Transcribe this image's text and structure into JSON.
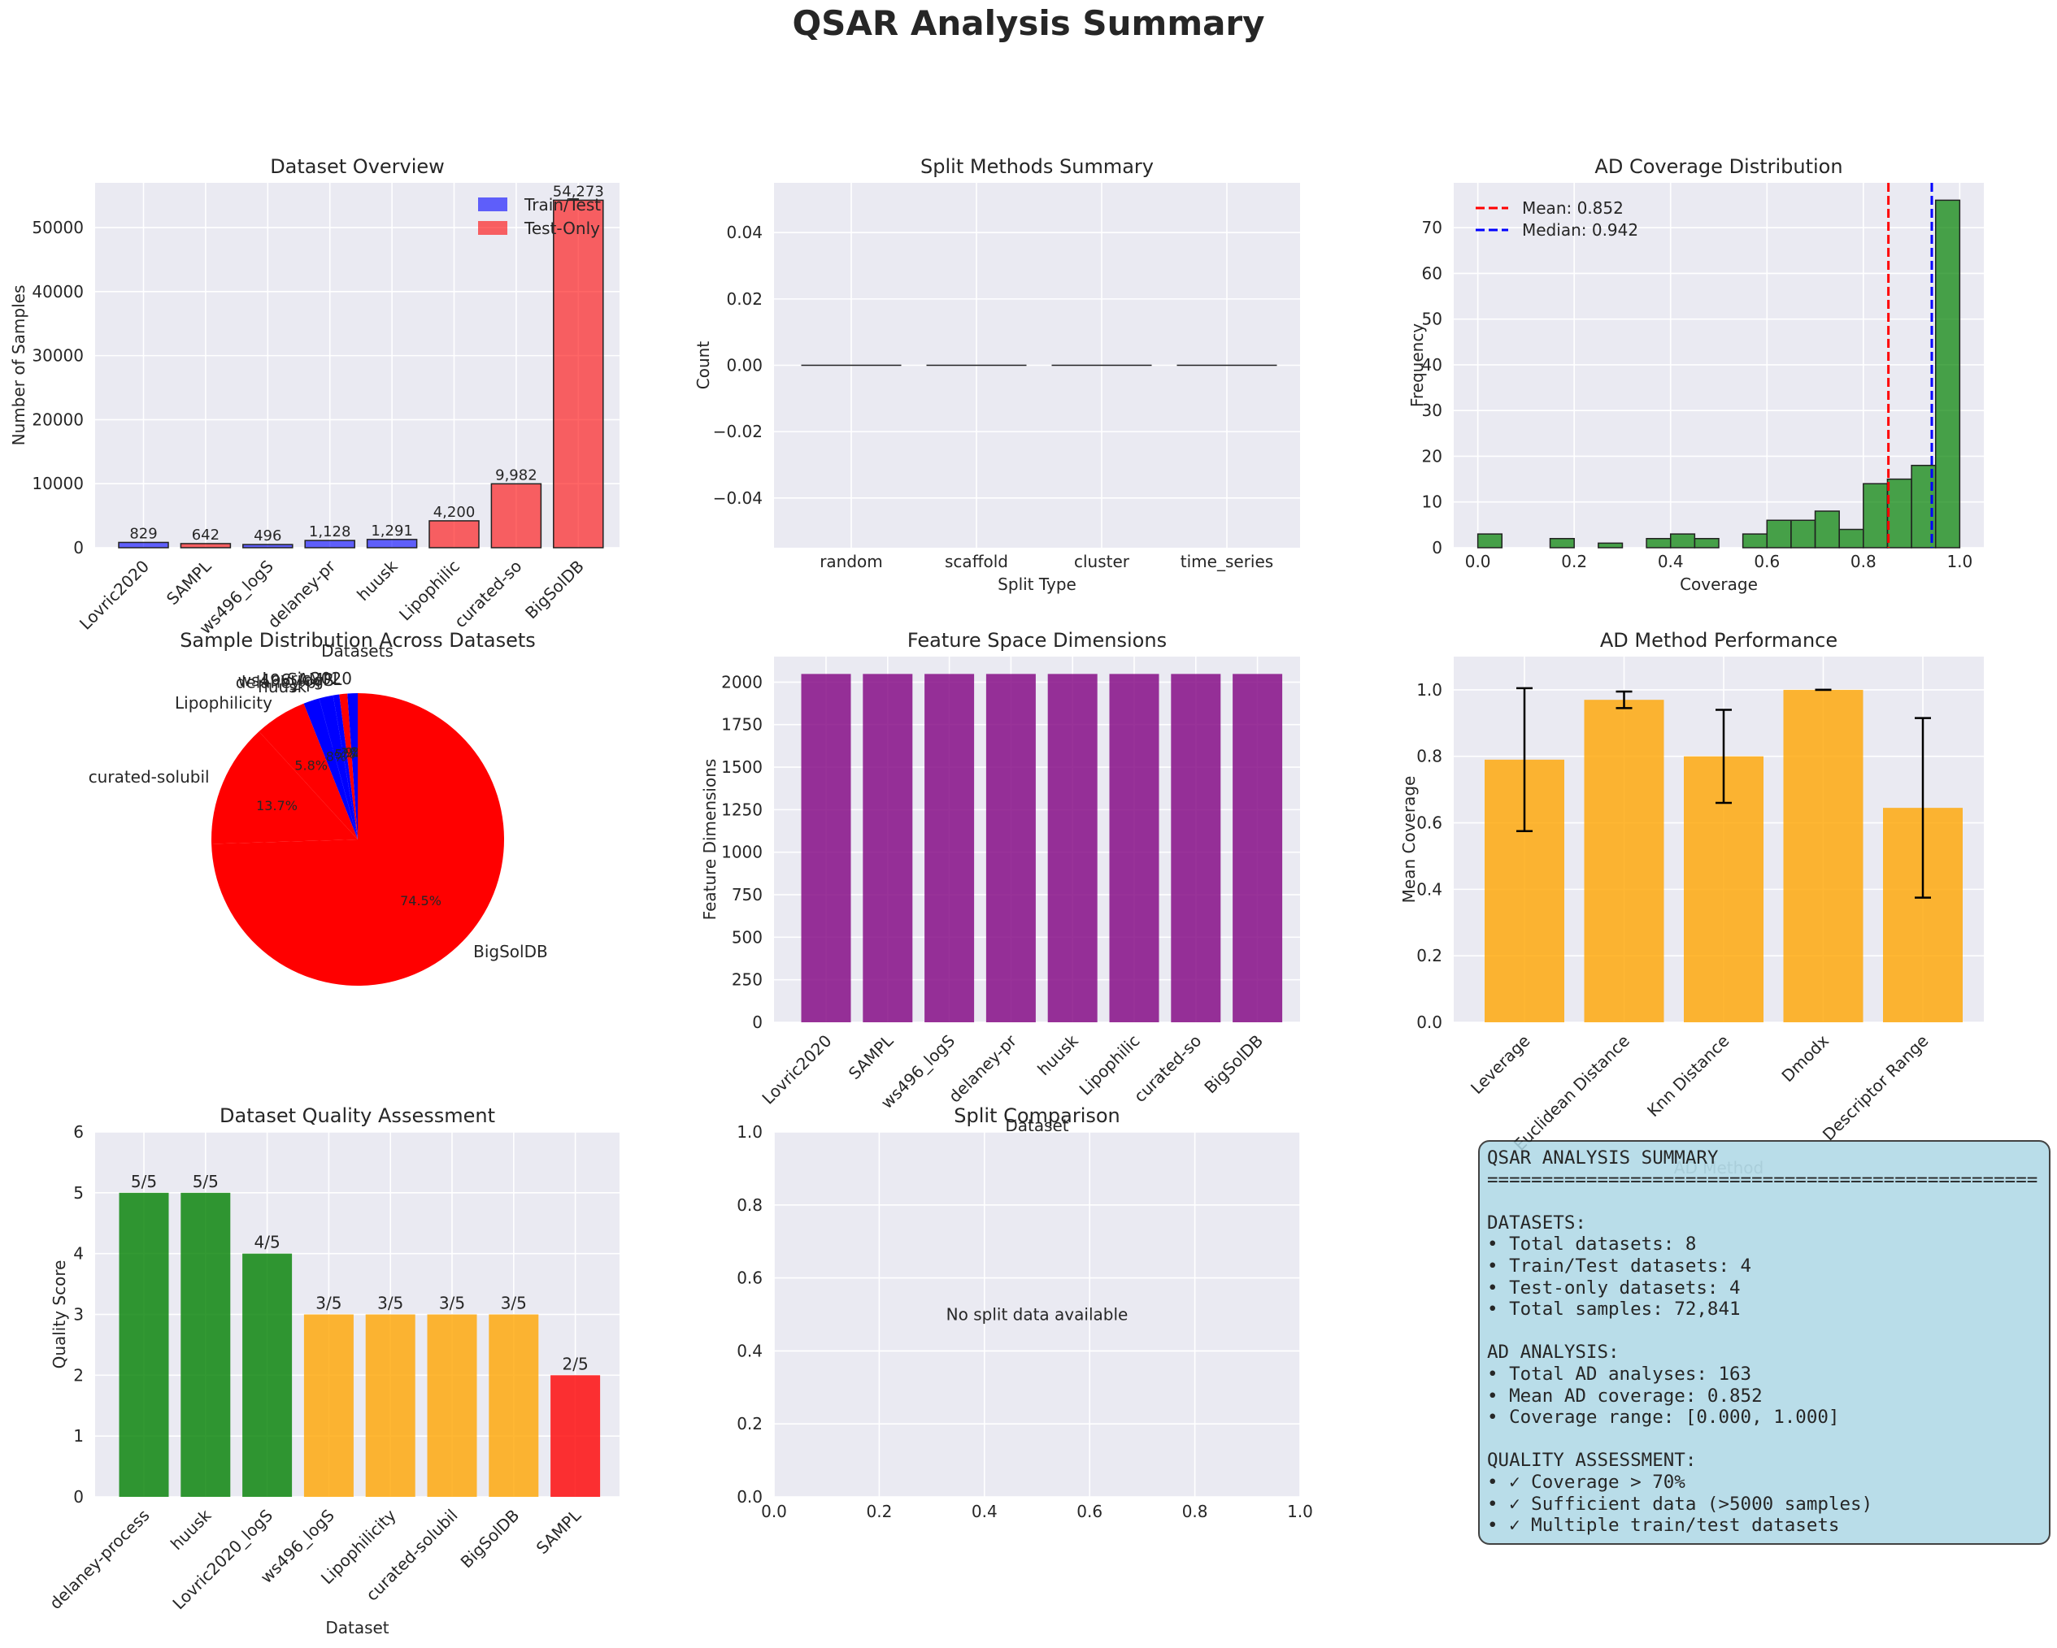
{
  "figure_title": "QSAR Analysis Summary",
  "colors": {
    "panel_bg": "#eaeaf2",
    "train_test": "#0000ff",
    "test_only": "#ff0000",
    "purple": "#800080",
    "green": "#008000",
    "orange": "#ffa500",
    "red": "#ff0000",
    "summary_bg": "#add8e6"
  },
  "chart_data": [
    {
      "id": "dataset_overview",
      "type": "bar",
      "title": "Dataset Overview",
      "xlabel": "Datasets",
      "ylabel": "Number of Samples",
      "categories": [
        "Lovric2020",
        "SAMPL",
        "ws496_logS",
        "delaney-pr",
        "huusk",
        "Lipophilic",
        "curated-so",
        "BigSolDB"
      ],
      "values": [
        829,
        642,
        496,
        1128,
        1291,
        4200,
        9982,
        54273
      ],
      "value_labels": [
        "829",
        "642",
        "496",
        "1,128",
        "1,291",
        "4,200",
        "9,982",
        "54,273"
      ],
      "bar_types": [
        "Train/Test",
        "Test-Only",
        "Train/Test",
        "Train/Test",
        "Train/Test",
        "Test-Only",
        "Test-Only",
        "Test-Only"
      ],
      "legend": [
        "Train/Test",
        "Test-Only"
      ],
      "legend_position": "top-right",
      "ylim": [
        0,
        56987
      ],
      "yticks": [
        0,
        10000,
        20000,
        30000,
        40000,
        50000
      ],
      "grid": true
    },
    {
      "id": "split_methods",
      "type": "bar",
      "title": "Split Methods Summary",
      "xlabel": "Split Type",
      "ylabel": "Count",
      "categories": [
        "random",
        "scaffold",
        "cluster",
        "time_series"
      ],
      "values": [
        0,
        0,
        0,
        0
      ],
      "ylim": [
        -0.055,
        0.055
      ],
      "yticks": [
        -0.04,
        -0.02,
        0.0,
        0.02,
        0.04
      ],
      "ytick_labels": [
        "−0.04",
        "−0.02",
        "0.00",
        "0.02",
        "0.04"
      ],
      "grid": true
    },
    {
      "id": "ad_coverage",
      "type": "bar",
      "title": "AD Coverage Distribution",
      "xlabel": "Coverage",
      "ylabel": "Frequency",
      "bin_width": 0.05,
      "bin_starts": [
        0.0,
        0.05,
        0.1,
        0.15,
        0.2,
        0.25,
        0.3,
        0.35,
        0.4,
        0.45,
        0.5,
        0.55,
        0.6,
        0.65,
        0.7,
        0.75,
        0.8,
        0.85,
        0.9,
        0.95
      ],
      "counts": [
        3,
        0,
        0,
        2,
        0,
        1,
        0,
        2,
        3,
        2,
        0,
        3,
        6,
        6,
        8,
        4,
        14,
        15,
        18,
        76
      ],
      "mean": 0.852,
      "median": 0.942,
      "legend": [
        "Mean: 0.852",
        "Median: 0.942"
      ],
      "legend_position": "top-left",
      "xlim": [
        -0.05,
        1.05
      ],
      "ylim": [
        0,
        79.8
      ],
      "xticks": [
        0.0,
        0.2,
        0.4,
        0.6,
        0.8,
        1.0
      ],
      "yticks": [
        0,
        10,
        20,
        30,
        40,
        50,
        60,
        70
      ],
      "grid": true
    },
    {
      "id": "sample_distribution",
      "type": "pie",
      "title": "Sample Distribution Across Datasets",
      "labels": [
        "Lovric2020",
        "SAMPL",
        "ws496_logS",
        "delaney-pr",
        "huusk",
        "Lipophilicity",
        "curated-solubil",
        "BigSolDB"
      ],
      "values": [
        829,
        642,
        496,
        1128,
        1291,
        4200,
        9982,
        54273
      ],
      "pct_labels": [
        "1.1%",
        "0.9%",
        "0.7%",
        "1.5%",
        "1.8%",
        "5.8%",
        "13.7%",
        "74.5%"
      ],
      "slice_colors": [
        "#0000ff",
        "#ff0000",
        "#0000ff",
        "#0000ff",
        "#0000ff",
        "#ff0000",
        "#ff0000",
        "#ff0000"
      ]
    },
    {
      "id": "feature_dimensions",
      "type": "bar",
      "title": "Feature Space Dimensions",
      "xlabel": "Dataset",
      "ylabel": "Feature Dimensions",
      "categories": [
        "Lovric2020",
        "SAMPL",
        "ws496_logS",
        "delaney-pr",
        "huusk",
        "Lipophilic",
        "curated-so",
        "BigSolDB"
      ],
      "values": [
        2048,
        2048,
        2048,
        2048,
        2048,
        2048,
        2048,
        2048
      ],
      "ylim": [
        0,
        2150
      ],
      "yticks": [
        0,
        250,
        500,
        750,
        1000,
        1250,
        1500,
        1750,
        2000
      ],
      "grid": true
    },
    {
      "id": "ad_method_performance",
      "type": "bar",
      "title": "AD Method Performance",
      "xlabel": "AD Method",
      "ylabel": "Mean Coverage",
      "categories": [
        "Leverage",
        "Euclidean Distance",
        "Knn Distance",
        "Dmodx",
        "Descriptor Range"
      ],
      "values": [
        0.79,
        0.97,
        0.8,
        1.0,
        0.645
      ],
      "errors": [
        0.215,
        0.025,
        0.14,
        0.0,
        0.27
      ],
      "ylim": [
        0,
        1.1
      ],
      "yticks": [
        0.0,
        0.2,
        0.4,
        0.6,
        0.8,
        1.0
      ],
      "grid": true
    },
    {
      "id": "quality_assessment",
      "type": "bar",
      "title": "Dataset Quality Assessment",
      "xlabel": "Dataset",
      "ylabel": "Quality Score",
      "categories": [
        "delaney-process",
        "huusk",
        "Lovric2020_logS",
        "ws496_logS",
        "Lipophilicity",
        "curated-solubil",
        "BigSolDB",
        "SAMPL"
      ],
      "values": [
        5,
        5,
        4,
        3,
        3,
        3,
        3,
        2
      ],
      "value_labels": [
        "5/5",
        "5/5",
        "4/5",
        "3/5",
        "3/5",
        "3/5",
        "3/5",
        "2/5"
      ],
      "bar_colors": [
        "#008000",
        "#008000",
        "#008000",
        "#ffa500",
        "#ffa500",
        "#ffa500",
        "#ffa500",
        "#ff0000"
      ],
      "ylim": [
        0,
        6
      ],
      "yticks": [
        0,
        1,
        2,
        3,
        4,
        5,
        6
      ],
      "grid": true
    },
    {
      "id": "split_comparison",
      "type": "table",
      "title": "Split Comparison",
      "message": "No split data available",
      "xlim": [
        0,
        1
      ],
      "ylim": [
        0,
        1
      ],
      "xticks": [
        0.0,
        0.2,
        0.4,
        0.6,
        0.8,
        1.0
      ],
      "yticks": [
        0.0,
        0.2,
        0.4,
        0.6,
        0.8,
        1.0
      ],
      "grid": true
    }
  ],
  "summary_text": "QSAR ANALYSIS SUMMARY\n==================================================\n\nDATASETS:\n• Total datasets: 8\n• Train/Test datasets: 4\n• Test-only datasets: 4\n• Total samples: 72,841\n\nAD ANALYSIS:\n• Total AD analyses: 163\n• Mean AD coverage: 0.852\n• Coverage range: [0.000, 1.000]\n\nQUALITY ASSESSMENT:\n• ✓ Coverage > 70%\n• ✓ Sufficient data (>5000 samples)\n• ✓ Multiple train/test datasets"
}
